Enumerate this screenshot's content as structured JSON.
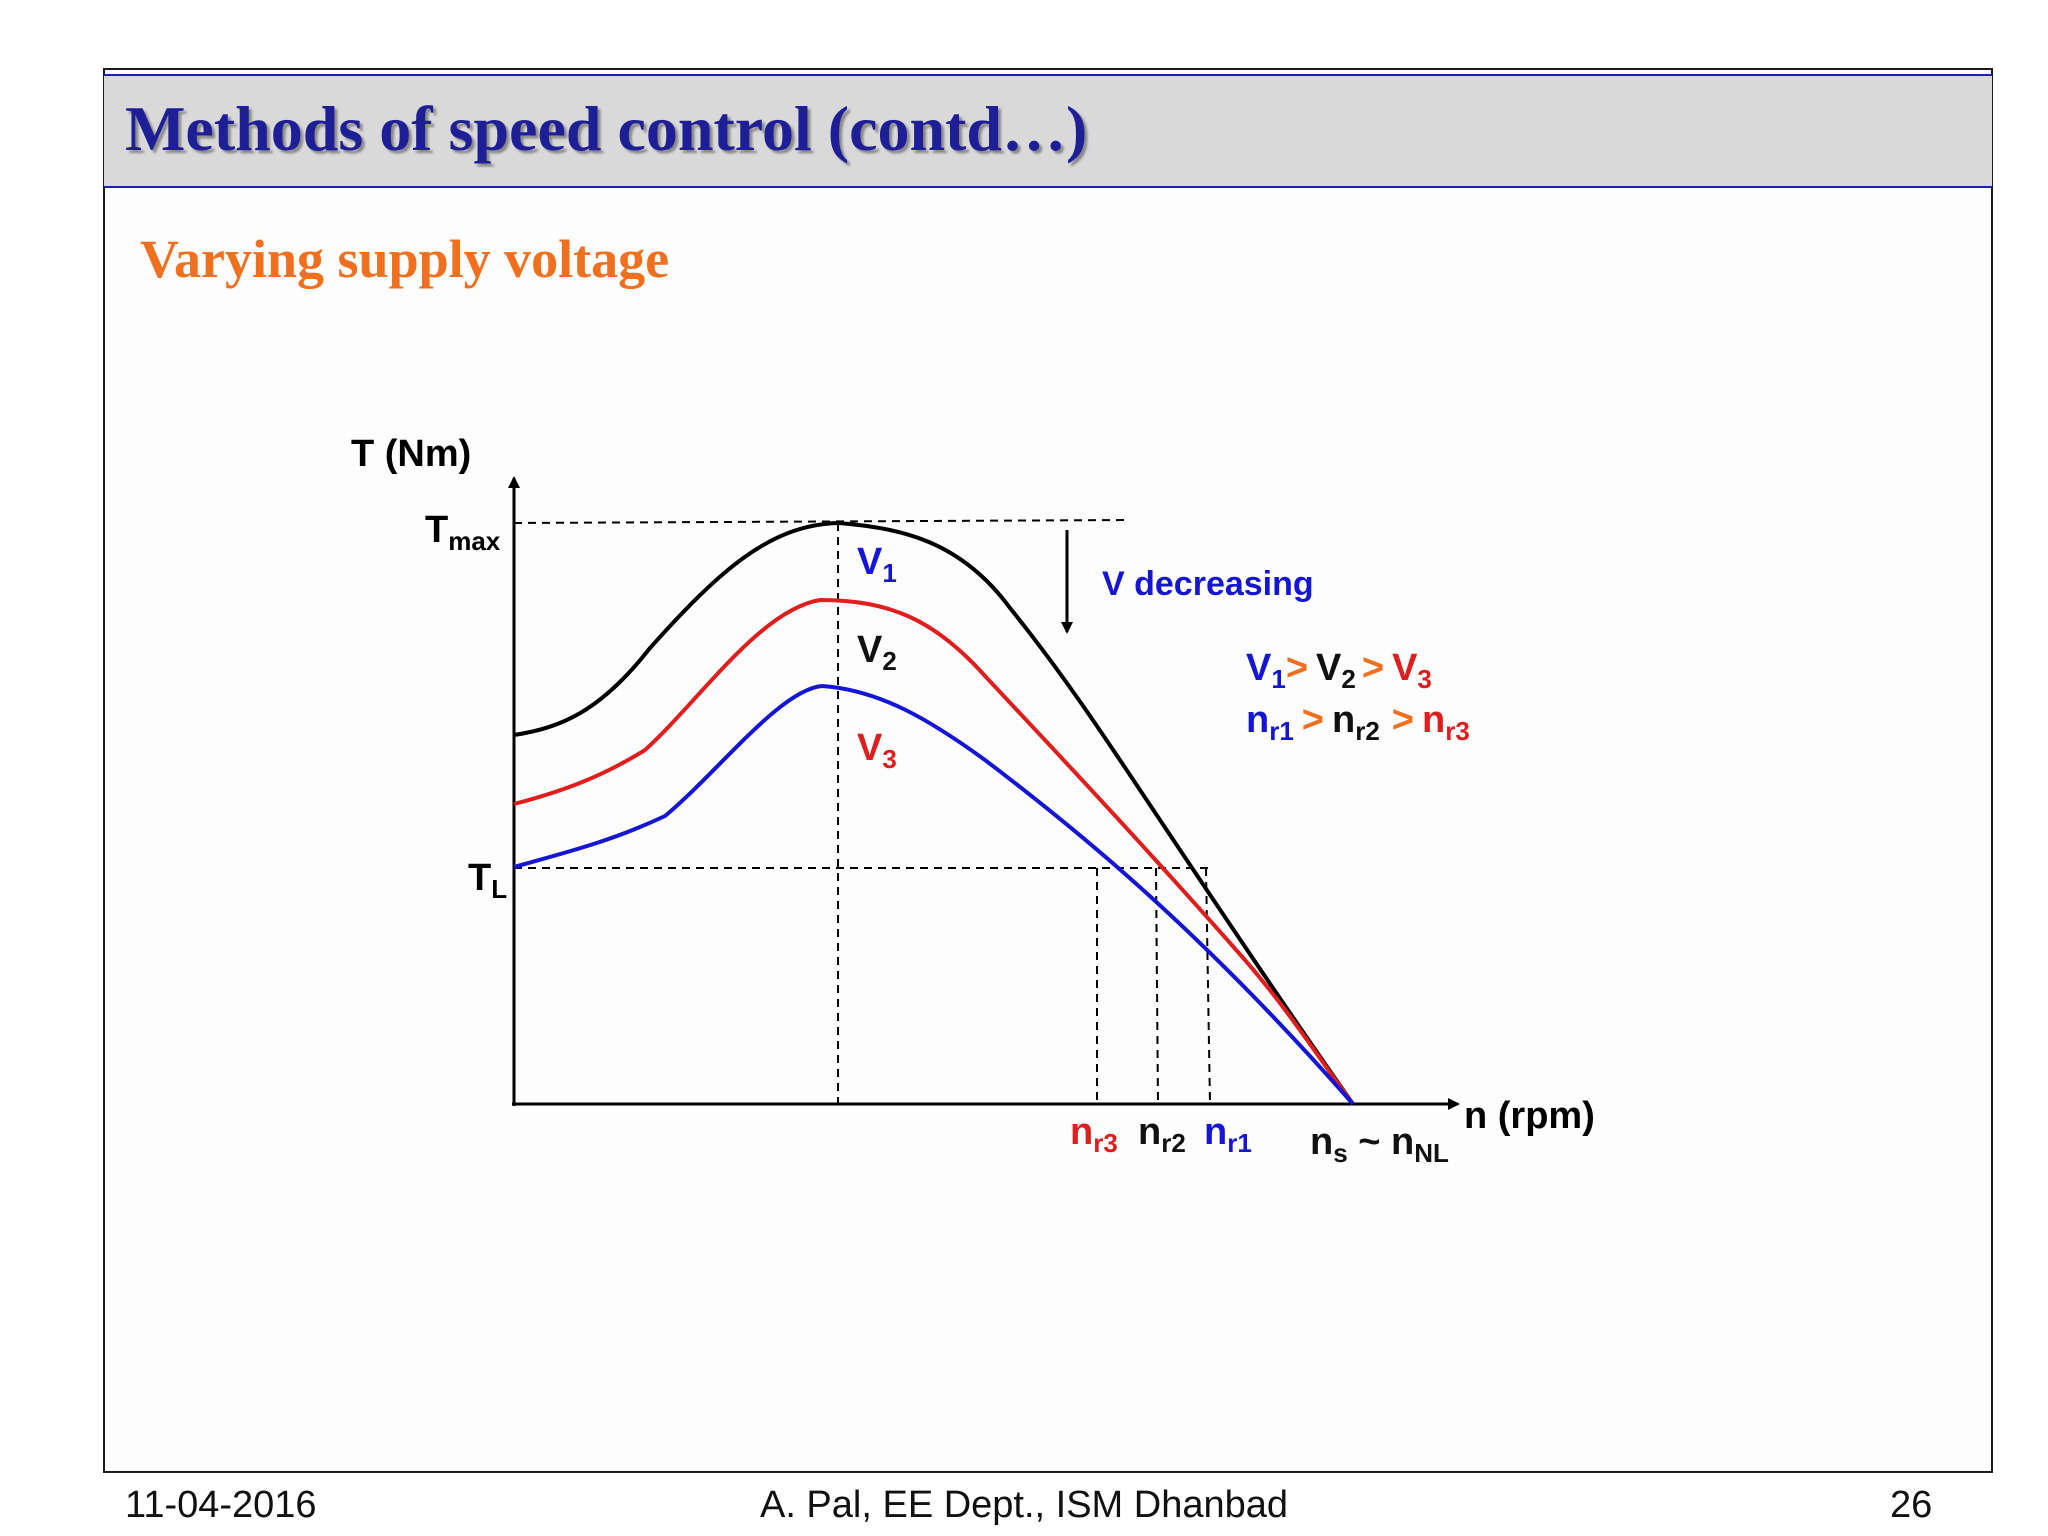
{
  "slide": {
    "title": "Methods of speed control (contd…)",
    "subtitle": "Varying supply voltage"
  },
  "diagram": {
    "y_axis_label": "T (Nm)",
    "x_axis_label": "n (rpm)",
    "tmax_label": {
      "main": "T",
      "sub": "max"
    },
    "tl_label": {
      "main": "T",
      "sub": "L"
    },
    "curve_labels": [
      {
        "main": "V",
        "sub": "1",
        "color": "#1515d6"
      },
      {
        "main": "V",
        "sub": "2",
        "color": "#111111"
      },
      {
        "main": "V",
        "sub": "3",
        "color": "#e01e1e"
      }
    ],
    "arrow_label": "V decreasing",
    "relation_v": [
      {
        "main": "V",
        "sub": "1",
        "color": "#1515d6"
      },
      {
        "op": ">",
        "color": "#f07020"
      },
      {
        "main": "V",
        "sub": "2",
        "color": "#111111"
      },
      {
        "op": ">",
        "color": "#f07020"
      },
      {
        "main": "V",
        "sub": "3",
        "color": "#e01e1e"
      }
    ],
    "relation_n": [
      {
        "main": "n",
        "sub": "r1",
        "color": "#1515d6"
      },
      {
        "op": ">",
        "color": "#f07020"
      },
      {
        "main": "n",
        "sub": "r2",
        "color": "#111111"
      },
      {
        "op": ">",
        "color": "#f07020"
      },
      {
        "main": "n",
        "sub": "r3",
        "color": "#e01e1e"
      }
    ],
    "speed_labels": [
      {
        "main": "n",
        "sub": "r3",
        "color": "#e01e1e"
      },
      {
        "main": "n",
        "sub": "r2",
        "color": "#111111"
      },
      {
        "main": "n",
        "sub": "r1",
        "color": "#1515d6"
      }
    ],
    "sync_label": {
      "main": "n",
      "sub": "s",
      "middle": " ~ ",
      "main2": "n",
      "sub2": "NL",
      "color": "#111111"
    },
    "colors": {
      "black_curve": "#000000",
      "red_curve": "#e01e1e",
      "blue_curve": "#1515d6"
    }
  },
  "footer": {
    "date": "11-04-2016",
    "author": "A. Pal, EE Dept., ISM Dhanbad",
    "page": "26"
  }
}
